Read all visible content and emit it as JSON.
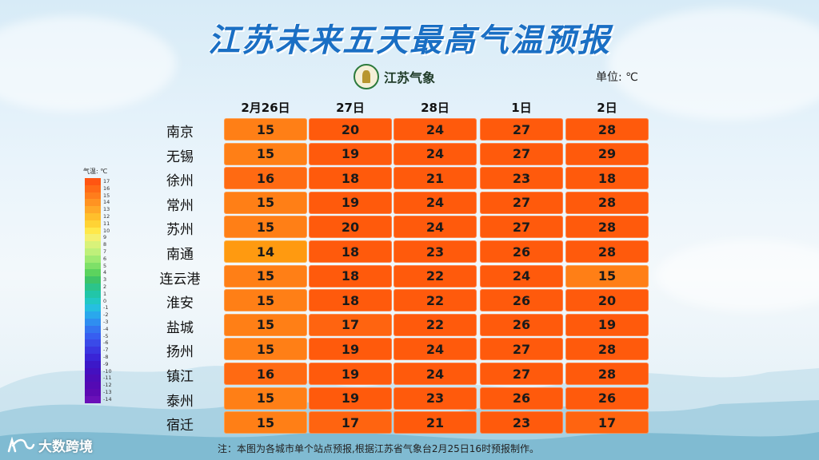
{
  "title": "江苏未来五天最高气温预报",
  "logo_text": "江苏气象",
  "unit": "单位: ℃",
  "dates": [
    "2月26日",
    "27日",
    "28日",
    "1日",
    "2日"
  ],
  "rows": [
    {
      "city": "南京",
      "values": [
        15,
        20,
        24,
        27,
        28
      ]
    },
    {
      "city": "无锡",
      "values": [
        15,
        19,
        24,
        27,
        29
      ]
    },
    {
      "city": "徐州",
      "values": [
        16,
        18,
        21,
        23,
        18
      ]
    },
    {
      "city": "常州",
      "values": [
        15,
        19,
        24,
        27,
        28
      ]
    },
    {
      "city": "苏州",
      "values": [
        15,
        20,
        24,
        27,
        28
      ]
    },
    {
      "city": "南通",
      "values": [
        14,
        18,
        23,
        26,
        28
      ]
    },
    {
      "city": "连云港",
      "values": [
        15,
        18,
        22,
        24,
        15
      ]
    },
    {
      "city": "淮安",
      "values": [
        15,
        18,
        22,
        26,
        20
      ]
    },
    {
      "city": "盐城",
      "values": [
        15,
        17,
        22,
        26,
        19
      ]
    },
    {
      "city": "扬州",
      "values": [
        15,
        19,
        24,
        27,
        28
      ]
    },
    {
      "city": "镇江",
      "values": [
        16,
        19,
        24,
        27,
        28
      ]
    },
    {
      "city": "泰州",
      "values": [
        15,
        19,
        23,
        26,
        26
      ]
    },
    {
      "city": "宿迁",
      "values": [
        15,
        17,
        21,
        23,
        17
      ]
    }
  ],
  "colors": {
    "14": "#ff9a10",
    "15": "#ff7f16",
    "16": "#ff6a12",
    "17": "#ff6410",
    "hot": "#ff5a0c"
  },
  "legend": {
    "title": "气温: ℃",
    "items": [
      {
        "label": "17",
        "color": "#ff5512"
      },
      {
        "label": "16",
        "color": "#ff6a16"
      },
      {
        "label": "15",
        "color": "#ff7d1c"
      },
      {
        "label": "14",
        "color": "#ff9322"
      },
      {
        "label": "13",
        "color": "#ffa928"
      },
      {
        "label": "12",
        "color": "#ffbf2c"
      },
      {
        "label": "11",
        "color": "#ffd335"
      },
      {
        "label": "10",
        "color": "#ffe84a"
      },
      {
        "label": "9",
        "color": "#f4f070"
      },
      {
        "label": "8",
        "color": "#d9f27a"
      },
      {
        "label": "7",
        "color": "#bff07a"
      },
      {
        "label": "6",
        "color": "#9fea72"
      },
      {
        "label": "5",
        "color": "#7ee068"
      },
      {
        "label": "4",
        "color": "#5cd35e"
      },
      {
        "label": "3",
        "color": "#3ec468"
      },
      {
        "label": "2",
        "color": "#2cc48a"
      },
      {
        "label": "1",
        "color": "#22c6a8"
      },
      {
        "label": "0",
        "color": "#22c8c4"
      },
      {
        "label": "-1",
        "color": "#26bfe0"
      },
      {
        "label": "-2",
        "color": "#2aa8ec"
      },
      {
        "label": "-3",
        "color": "#2f8ef0"
      },
      {
        "label": "-4",
        "color": "#3474f0"
      },
      {
        "label": "-5",
        "color": "#375ef0"
      },
      {
        "label": "-6",
        "color": "#3a4ae8"
      },
      {
        "label": "-7",
        "color": "#3a36e0"
      },
      {
        "label": "-8",
        "color": "#3a24d6"
      },
      {
        "label": "-9",
        "color": "#3c18c8"
      },
      {
        "label": "-10",
        "color": "#4410c0"
      },
      {
        "label": "-11",
        "color": "#4c0cb8"
      },
      {
        "label": "-12",
        "color": "#540ab4"
      },
      {
        "label": "-13",
        "color": "#5c0ab2"
      },
      {
        "label": "-14",
        "color": "#6a10b8"
      }
    ]
  },
  "note": "注：本图为各城市单个站点预报,根据江苏省气象台2月25日16时预报制作。",
  "brand": "大数跨境"
}
